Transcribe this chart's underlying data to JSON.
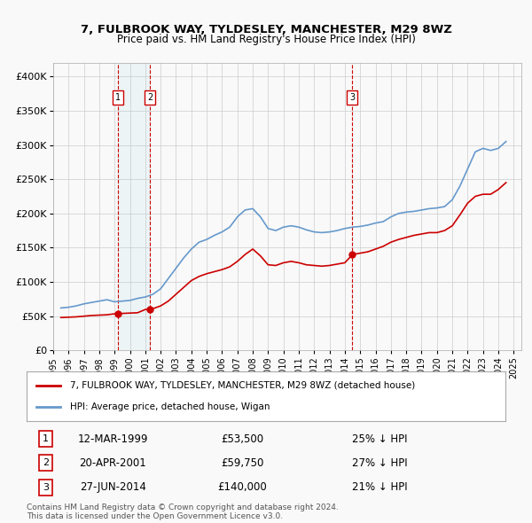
{
  "title": "7, FULBROOK WAY, TYLDESLEY, MANCHESTER, M29 8WZ",
  "subtitle": "Price paid vs. HM Land Registry's House Price Index (HPI)",
  "xlabel": "",
  "ylabel": "",
  "xlim": [
    1995.0,
    2025.5
  ],
  "ylim": [
    0,
    420000
  ],
  "yticks": [
    0,
    50000,
    100000,
    150000,
    200000,
    250000,
    300000,
    350000,
    400000
  ],
  "ytick_labels": [
    "£0",
    "£50K",
    "£100K",
    "£150K",
    "£200K",
    "£250K",
    "£300K",
    "£350K",
    "£400K"
  ],
  "xticks": [
    1995,
    1996,
    1997,
    1998,
    1999,
    2000,
    2001,
    2002,
    2003,
    2004,
    2005,
    2006,
    2007,
    2008,
    2009,
    2010,
    2011,
    2012,
    2013,
    2014,
    2015,
    2016,
    2017,
    2018,
    2019,
    2020,
    2021,
    2022,
    2023,
    2024,
    2025
  ],
  "background_color": "#f9f9f9",
  "grid_color": "#cccccc",
  "sale_color": "#cc0000",
  "hpi_color": "#6699cc",
  "transactions": [
    {
      "id": 1,
      "date": 1999.19,
      "price": 53500,
      "label": "12-MAR-1999",
      "pct": "25%",
      "dir": "↓"
    },
    {
      "id": 2,
      "date": 2001.3,
      "price": 59750,
      "label": "20-APR-2001",
      "pct": "27%",
      "dir": "↓"
    },
    {
      "id": 3,
      "date": 2014.48,
      "price": 140000,
      "label": "27-JUN-2014",
      "pct": "21%",
      "dir": "↓"
    }
  ],
  "legend_label_sale": "7, FULBROOK WAY, TYLDESLEY, MANCHESTER, M29 8WZ (detached house)",
  "legend_label_hpi": "HPI: Average price, detached house, Wigan",
  "footnote": "Contains HM Land Registry data © Crown copyright and database right 2024.\nThis data is licensed under the Open Government Licence v3.0.",
  "hpi_data": {
    "years": [
      1995.5,
      1996.0,
      1996.5,
      1997.0,
      1997.5,
      1998.0,
      1998.5,
      1999.0,
      1999.5,
      2000.0,
      2000.5,
      2001.0,
      2001.5,
      2002.0,
      2002.5,
      2003.0,
      2003.5,
      2004.0,
      2004.5,
      2005.0,
      2005.5,
      2006.0,
      2006.5,
      2007.0,
      2007.5,
      2008.0,
      2008.5,
      2009.0,
      2009.5,
      2010.0,
      2010.5,
      2011.0,
      2011.5,
      2012.0,
      2012.5,
      2013.0,
      2013.5,
      2014.0,
      2014.5,
      2015.0,
      2015.5,
      2016.0,
      2016.5,
      2017.0,
      2017.5,
      2018.0,
      2018.5,
      2019.0,
      2019.5,
      2020.0,
      2020.5,
      2021.0,
      2021.5,
      2022.0,
      2022.5,
      2023.0,
      2023.5,
      2024.0,
      2024.5
    ],
    "values": [
      62000,
      63000,
      65000,
      68000,
      70000,
      72000,
      74000,
      71000,
      72000,
      73000,
      76000,
      78000,
      82000,
      90000,
      105000,
      120000,
      135000,
      148000,
      158000,
      162000,
      168000,
      173000,
      180000,
      195000,
      205000,
      207000,
      195000,
      178000,
      175000,
      180000,
      182000,
      180000,
      176000,
      173000,
      172000,
      173000,
      175000,
      178000,
      180000,
      181000,
      183000,
      186000,
      188000,
      195000,
      200000,
      202000,
      203000,
      205000,
      207000,
      208000,
      210000,
      220000,
      240000,
      265000,
      290000,
      295000,
      292000,
      295000,
      305000
    ]
  },
  "sale_data": {
    "years": [
      1995.5,
      1996.0,
      1996.5,
      1997.0,
      1997.5,
      1998.0,
      1998.5,
      1999.0,
      1999.5,
      2000.0,
      2000.5,
      2001.0,
      2001.5,
      2002.0,
      2002.5,
      2003.0,
      2003.5,
      2004.0,
      2004.5,
      2005.0,
      2005.5,
      2006.0,
      2006.5,
      2007.0,
      2007.5,
      2008.0,
      2008.5,
      2009.0,
      2009.5,
      2010.0,
      2010.5,
      2011.0,
      2011.5,
      2012.0,
      2012.5,
      2013.0,
      2013.5,
      2014.0,
      2014.5,
      2015.0,
      2015.5,
      2016.0,
      2016.5,
      2017.0,
      2017.5,
      2018.0,
      2018.5,
      2019.0,
      2019.5,
      2020.0,
      2020.5,
      2021.0,
      2021.5,
      2022.0,
      2022.5,
      2023.0,
      2023.5,
      2024.0,
      2024.5
    ],
    "values": [
      48000,
      48500,
      49000,
      50000,
      51000,
      51500,
      52000,
      53500,
      54000,
      54500,
      55000,
      59750,
      61000,
      65000,
      72000,
      82000,
      92000,
      102000,
      108000,
      112000,
      115000,
      118000,
      122000,
      130000,
      140000,
      148000,
      138000,
      125000,
      124000,
      128000,
      130000,
      128000,
      125000,
      124000,
      123000,
      124000,
      126000,
      128000,
      140000,
      142000,
      144000,
      148000,
      152000,
      158000,
      162000,
      165000,
      168000,
      170000,
      172000,
      172000,
      175000,
      182000,
      198000,
      215000,
      225000,
      228000,
      228000,
      235000,
      245000
    ]
  }
}
